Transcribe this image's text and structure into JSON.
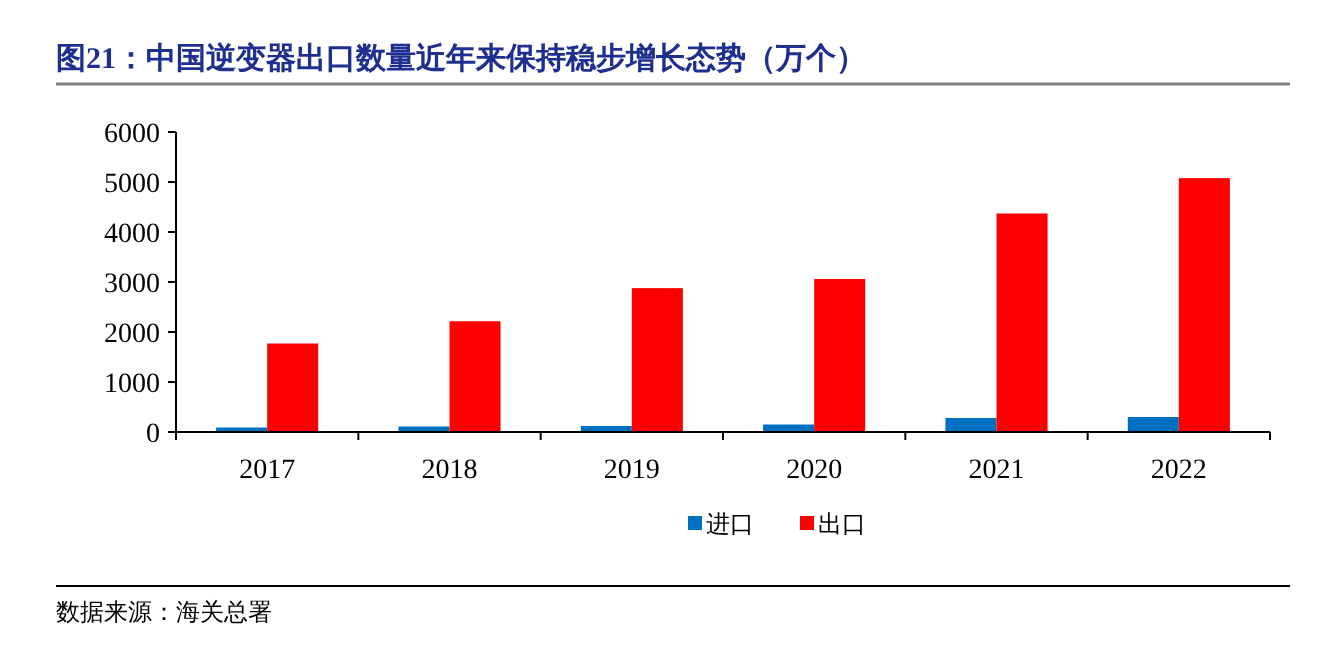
{
  "chart_data": {
    "type": "bar",
    "title": "图21：中国逆变器出口数量近年来保持稳步增长态势（万个）",
    "categories": [
      "2017",
      "2018",
      "2019",
      "2020",
      "2021",
      "2022"
    ],
    "series": [
      {
        "name": "进口",
        "color": "#0070c0",
        "values": [
          90,
          110,
          120,
          150,
          280,
          300
        ]
      },
      {
        "name": "出口",
        "color": "#ff0000",
        "values": [
          1770,
          2215,
          2877,
          3060,
          4370,
          5077
        ]
      }
    ],
    "ylim": [
      0,
      6000
    ],
    "yticks": [
      0,
      1000,
      2000,
      3000,
      4000,
      5000,
      6000
    ],
    "grid": false,
    "legend": "bottom",
    "annotations": [
      "数据来源：海关总署"
    ]
  }
}
